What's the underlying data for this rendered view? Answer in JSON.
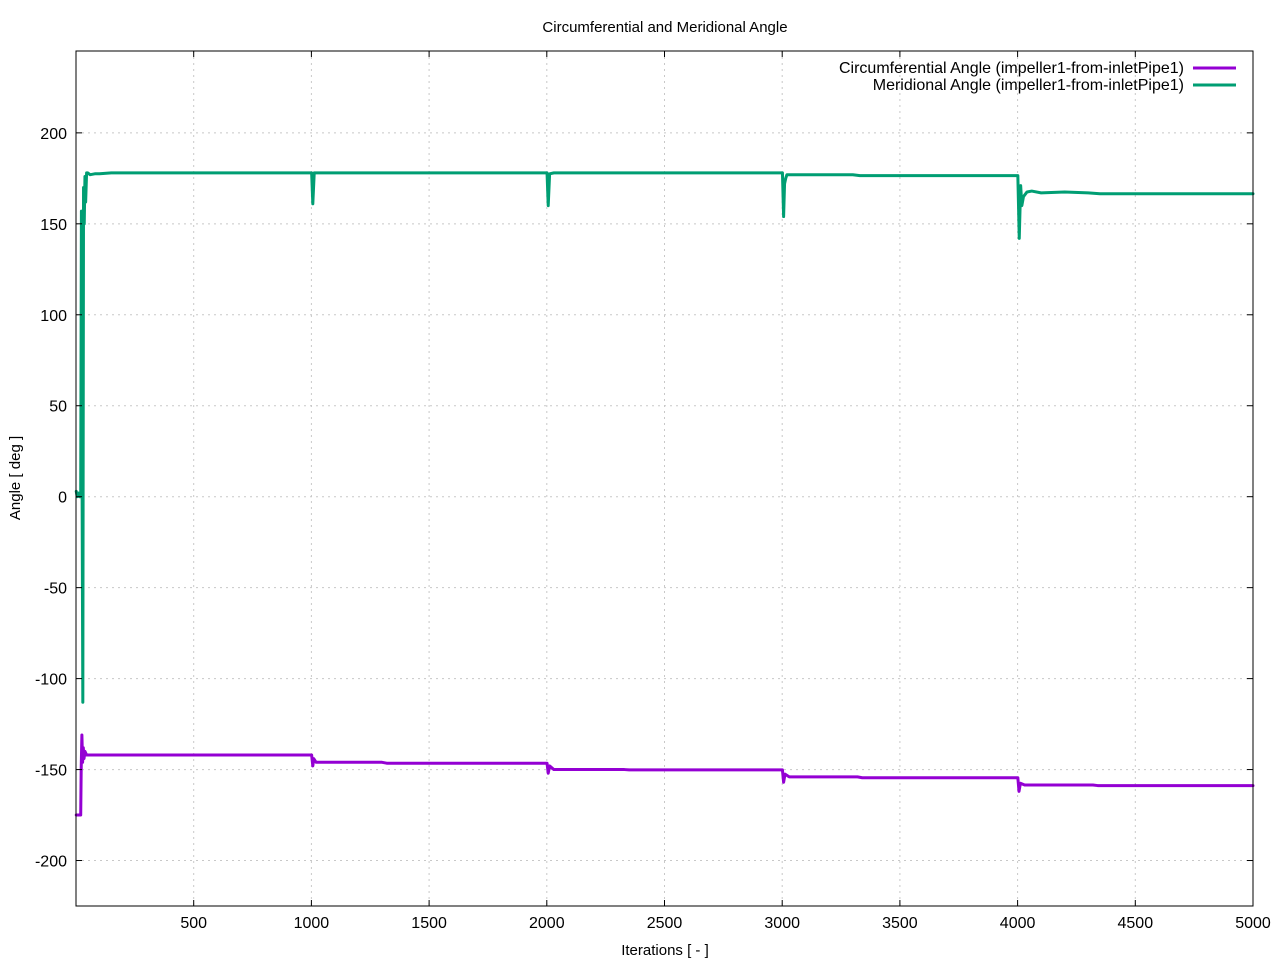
{
  "chart_data": {
    "type": "line",
    "title": "Circumferential and Meridional Angle",
    "xlabel": "Iterations [ - ]",
    "ylabel": "Angle [ deg ]",
    "xlim": [
      0,
      5000
    ],
    "ylim": [
      -225,
      245
    ],
    "xticks": [
      500,
      1000,
      1500,
      2000,
      2500,
      3000,
      3500,
      4000,
      4500,
      5000
    ],
    "yticks": [
      -200,
      -150,
      -100,
      -50,
      0,
      50,
      100,
      150,
      200
    ],
    "grid": true,
    "legend_position": "top-right",
    "series": [
      {
        "name": "Circumferential Angle (impeller1-from-inletPipe1)",
        "color": "#9400d3",
        "x": [
          1,
          20,
          22,
          25,
          28,
          31,
          34,
          38,
          45,
          60,
          150,
          500,
          1000,
          1001,
          1006,
          1010,
          1020,
          1300,
          1320,
          2000,
          2001,
          2006,
          2012,
          2030,
          2330,
          2350,
          3000,
          3001,
          3006,
          3012,
          3030,
          3320,
          3340,
          4000,
          4001,
          4006,
          4012,
          4030,
          4320,
          4340,
          5000
        ],
        "y": [
          -175,
          -175,
          -150,
          -131,
          -146,
          -138,
          -144,
          -140,
          -142,
          -142,
          -142,
          -142,
          -142,
          -142,
          -148,
          -144,
          -146,
          -146,
          -146.5,
          -146.5,
          -146.5,
          -152,
          -148,
          -150,
          -150,
          -150.2,
          -150.2,
          -150.2,
          -157,
          -152.5,
          -154,
          -154,
          -154.5,
          -154.5,
          -154.5,
          -162,
          -157.5,
          -158.5,
          -158.5,
          -158.8,
          -158.8
        ]
      },
      {
        "name": "Meridional Angle (impeller1-from-inletPipe1)",
        "color": "#009e73",
        "x": [
          1,
          5,
          10,
          15,
          20,
          23,
          26,
          29,
          32,
          35,
          38,
          41,
          45,
          50,
          60,
          80,
          100,
          150,
          500,
          1000,
          1001,
          1006,
          1012,
          1030,
          2000,
          2001,
          2006,
          2012,
          2030,
          3000,
          3001,
          3006,
          3010,
          3015,
          3020,
          3040,
          3300,
          3330,
          4000,
          4001,
          4007,
          4013,
          4018,
          4025,
          4040,
          4060,
          4100,
          4200,
          4300,
          4350,
          5000
        ],
        "y": [
          3,
          0,
          2,
          0,
          0,
          157,
          0,
          -113,
          170,
          150,
          176,
          162,
          178,
          178,
          177,
          177.5,
          177.5,
          178,
          178,
          178,
          178,
          161,
          178,
          178,
          178,
          178,
          160,
          177.5,
          178,
          178,
          178,
          154,
          172,
          175,
          177,
          177,
          177,
          176.5,
          176.5,
          176.5,
          142,
          171,
          160,
          165,
          167.5,
          168,
          167,
          167.5,
          167,
          166.5,
          166.5
        ]
      }
    ]
  }
}
